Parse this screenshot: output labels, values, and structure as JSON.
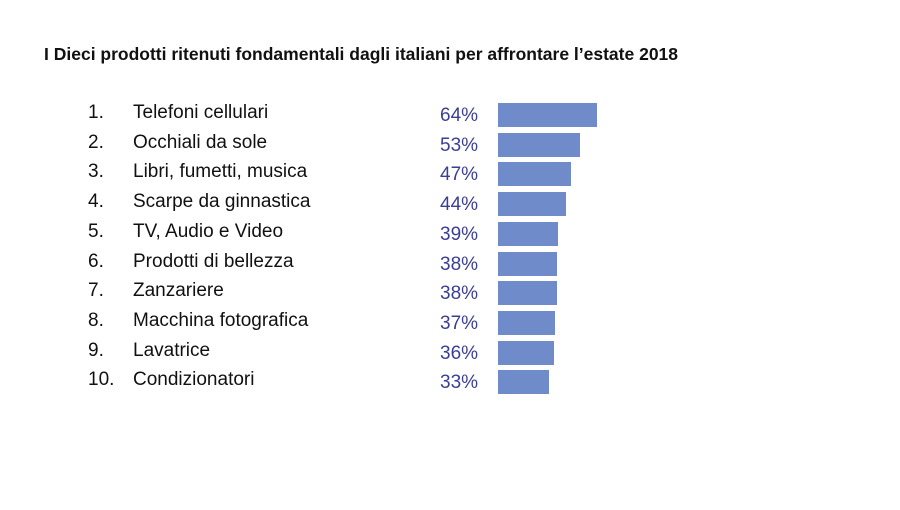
{
  "chart_data": {
    "type": "bar",
    "orientation": "horizontal",
    "title": "I Dieci prodotti ritenuti fondamentali dagli italiani per affrontare l’estate 2018",
    "ranks": [
      "1.",
      "2.",
      "3.",
      "4.",
      "5.",
      "6.",
      "7.",
      "8.",
      "9.",
      "10."
    ],
    "categories": [
      "Telefoni cellulari",
      "Occhiali da sole",
      "Libri, fumetti, musica",
      "Scarpe da ginnastica",
      "TV, Audio e Video",
      "Prodotti di bellezza",
      "Zanzariere",
      "Macchina fotografica",
      "Lavatrice",
      "Condizionatori"
    ],
    "values": [
      64,
      53,
      47,
      44,
      39,
      38,
      38,
      37,
      36,
      33
    ],
    "value_labels": [
      "64%",
      "53%",
      "47%",
      "44%",
      "39%",
      "38%",
      "38%",
      "37%",
      "36%",
      "33%"
    ],
    "unit": "%",
    "xlim": [
      0,
      64
    ],
    "grid": false,
    "legend": "none",
    "bar_color": "#6f8bc9",
    "value_color": "#3a3f93"
  }
}
